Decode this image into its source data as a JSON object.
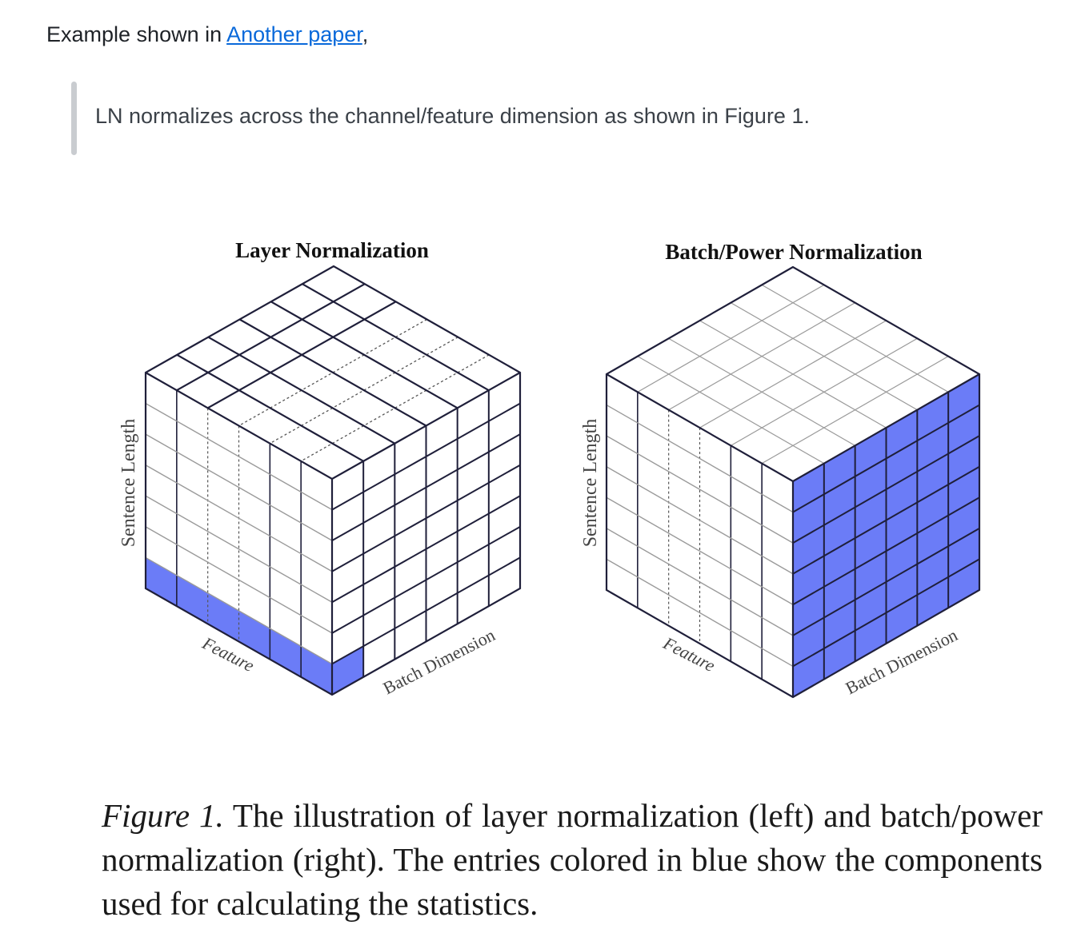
{
  "intro": {
    "prefix": "Example shown in ",
    "link_text": "Another paper",
    "suffix": ","
  },
  "quote": {
    "text": "LN normalizes across the channel/feature dimension as shown in Figure 1."
  },
  "figure": {
    "panels": [
      {
        "id": "layer",
        "title": "Layer Normalization",
        "axis_vertical": "Sentence Length",
        "axis_left": "Feature",
        "axis_right": "Batch Dimension",
        "highlight": "bottom row of front-left face"
      },
      {
        "id": "batch",
        "title": "Batch/Power Normalization",
        "axis_vertical": "Sentence Length",
        "axis_left": "Feature",
        "axis_right": "Batch Dimension",
        "highlight": "entire front-right face"
      }
    ],
    "grid": {
      "left_face_cols": 6,
      "right_face_cols": 6,
      "rows": 7
    },
    "colors": {
      "highlight": "#6b7cf7",
      "line": "#1f1f3a",
      "dotted": "#555555",
      "faint": "#9a9a9a"
    }
  },
  "caption": {
    "label": "Figure 1.",
    "text": " The illustration of layer normalization (left) and batch/power normalization (right). The entries colored in blue show the components used for calculating the statistics."
  }
}
